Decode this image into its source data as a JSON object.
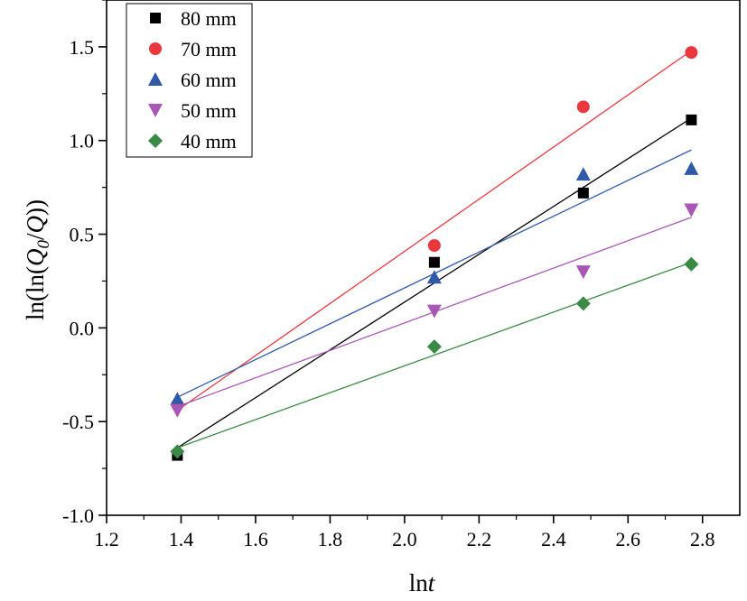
{
  "chart_data": {
    "type": "scatter",
    "xlabel_parts": [
      "ln",
      "t"
    ],
    "ylabel_parts": [
      "ln(ln(",
      "Q",
      "0",
      "/",
      "Q",
      "))"
    ],
    "xlim": [
      1.2,
      2.9
    ],
    "ylim": [
      -1.0,
      1.75
    ],
    "x_ticks": [
      1.2,
      1.4,
      1.6,
      1.8,
      2.0,
      2.2,
      2.4,
      2.6,
      2.8
    ],
    "y_ticks": [
      -1.0,
      -0.5,
      0.0,
      0.5,
      1.0,
      1.5
    ],
    "x_tick_labels": [
      "1.2",
      "1.4",
      "1.6",
      "1.8",
      "2.0",
      "2.2",
      "2.4",
      "2.6",
      "2.8"
    ],
    "y_tick_labels": [
      "-1.0",
      "-0.5",
      "0.0",
      "0.5",
      "1.0",
      "1.5"
    ],
    "legend_position": "top-left",
    "grid": false,
    "x": [
      1.39,
      2.08,
      2.48,
      2.77
    ],
    "series": [
      {
        "name": "80 mm",
        "marker": "square",
        "color": "#000000",
        "values": [
          -0.68,
          0.35,
          0.72,
          1.11
        ],
        "fit": [
          [
            1.39,
            -0.64
          ],
          [
            2.77,
            1.12
          ]
        ]
      },
      {
        "name": "70 mm",
        "marker": "circle",
        "color": "#e8383d",
        "values": [
          -0.41,
          0.44,
          1.18,
          1.47
        ],
        "fit": [
          [
            1.39,
            -0.44
          ],
          [
            2.77,
            1.48
          ]
        ]
      },
      {
        "name": "60 mm",
        "marker": "triangle-up",
        "color": "#2f5aa8",
        "values": [
          -0.38,
          0.27,
          0.82,
          0.85
        ],
        "fit": [
          [
            1.39,
            -0.37
          ],
          [
            2.77,
            0.95
          ]
        ]
      },
      {
        "name": "50 mm",
        "marker": "triangle-down",
        "color": "#a857b6",
        "values": [
          -0.44,
          0.09,
          0.3,
          0.63
        ],
        "fit": [
          [
            1.39,
            -0.42
          ],
          [
            2.77,
            0.59
          ]
        ]
      },
      {
        "name": "40 mm",
        "marker": "diamond",
        "color": "#3a8a46",
        "values": [
          -0.66,
          -0.1,
          0.13,
          0.34
        ],
        "fit": [
          [
            1.39,
            -0.64
          ],
          [
            2.77,
            0.35
          ]
        ]
      }
    ]
  }
}
